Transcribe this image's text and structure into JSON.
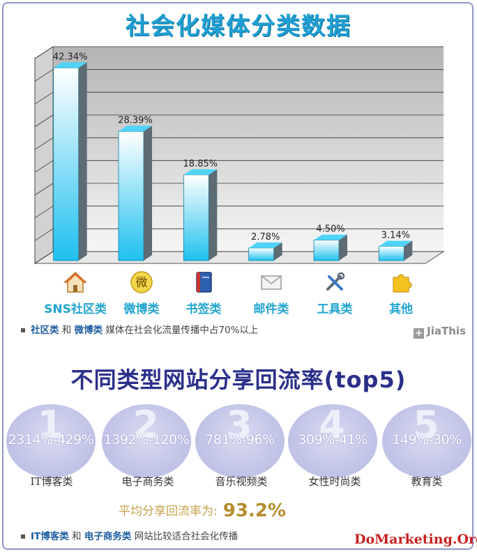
{
  "title": "社会化媒体分类数据",
  "chart_data": {
    "type": "bar",
    "title": "社会化媒体分类数据",
    "categories": [
      "SNS社区类",
      "微博类",
      "书签类",
      "邮件类",
      "工具类",
      "其他"
    ],
    "values": [
      42.34,
      28.39,
      18.85,
      2.78,
      4.5,
      3.14
    ],
    "value_labels": [
      "42.34%",
      "28.39%",
      "18.85%",
      "2.78%",
      "4.50%",
      "3.14%"
    ],
    "ylim": [
      0,
      45
    ],
    "grid": true,
    "bar_color": "#1ec0ef"
  },
  "categories": [
    {
      "label": "SNS社区类",
      "icon": "home-icon"
    },
    {
      "label": "微博类",
      "icon": "weibo-icon"
    },
    {
      "label": "书签类",
      "icon": "book-icon"
    },
    {
      "label": "邮件类",
      "icon": "mail-icon"
    },
    {
      "label": "工具类",
      "icon": "tools-icon"
    },
    {
      "label": "其他",
      "icon": "puzzle-icon"
    }
  ],
  "note1": {
    "a": "社区类",
    "and": "和",
    "b": "微博类",
    "rest": "媒体在社会化流量传播中占70%以上"
  },
  "brand": "JiaThis",
  "title2": "不同类型网站分享回流率(top5)",
  "ranks": [
    {
      "num": "1",
      "rate": "2314%-429%",
      "name": "IT博客类"
    },
    {
      "num": "2",
      "rate": "1392%-120%",
      "name": "电子商务类"
    },
    {
      "num": "3",
      "rate": "781%-96%",
      "name": "音乐视频类"
    },
    {
      "num": "4",
      "rate": "309%-41%",
      "name": "女性时尚类"
    },
    {
      "num": "5",
      "rate": "149%-30%",
      "name": "教育类"
    }
  ],
  "avg": {
    "label": "平均分享回流率为:",
    "value": "93.2%"
  },
  "note2": {
    "a": "IT博客类",
    "and": "和",
    "b": "电子商务类",
    "rest": "网站比较适合社会化传播"
  },
  "watermark": "DoMarketing.Org",
  "colors": {
    "title": "#1f9fd3",
    "title2": "#2a2f8a",
    "accent": "#b48d2e",
    "watermark": "#c81e1e"
  }
}
